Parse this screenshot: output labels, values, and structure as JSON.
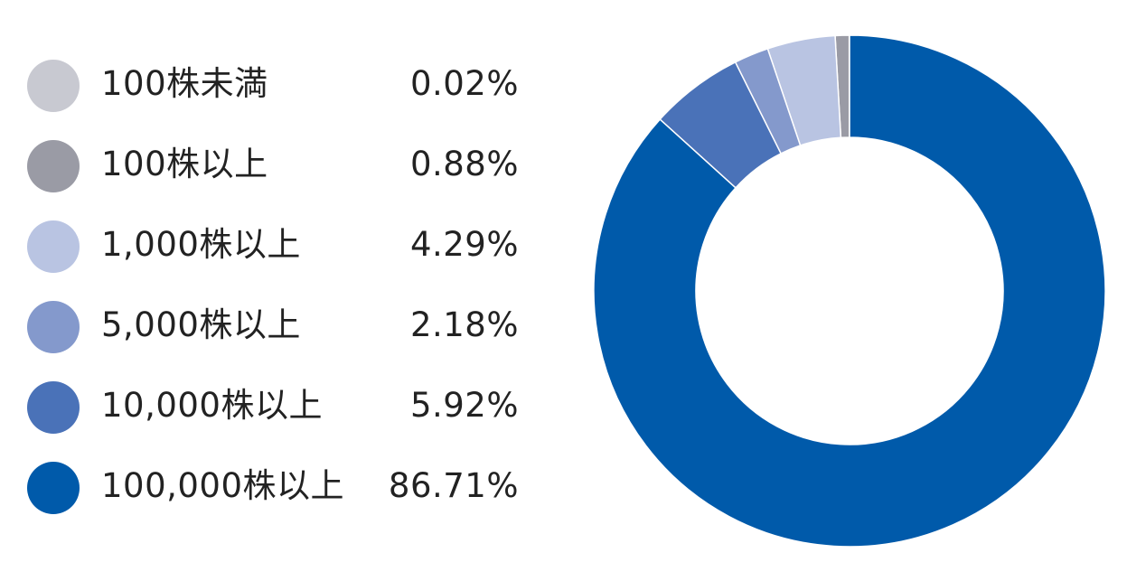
{
  "chart_data": {
    "type": "pie",
    "subtype": "donut",
    "title": "",
    "legend_position": "left",
    "categories": [
      "100株未満",
      "100株以上",
      "1,000株以上",
      "5,000株以上",
      "10,000株以上",
      "100,000株以上"
    ],
    "values": [
      0.02,
      0.88,
      4.29,
      2.18,
      5.92,
      86.71
    ],
    "value_labels": [
      "0.02%",
      "0.88%",
      "4.29%",
      "2.18%",
      "5.92%",
      "86.71%"
    ],
    "colors": [
      "#c8c9d1",
      "#9a9ba5",
      "#b9c4e2",
      "#8499cc",
      "#4a72b8",
      "#005aaa"
    ]
  }
}
